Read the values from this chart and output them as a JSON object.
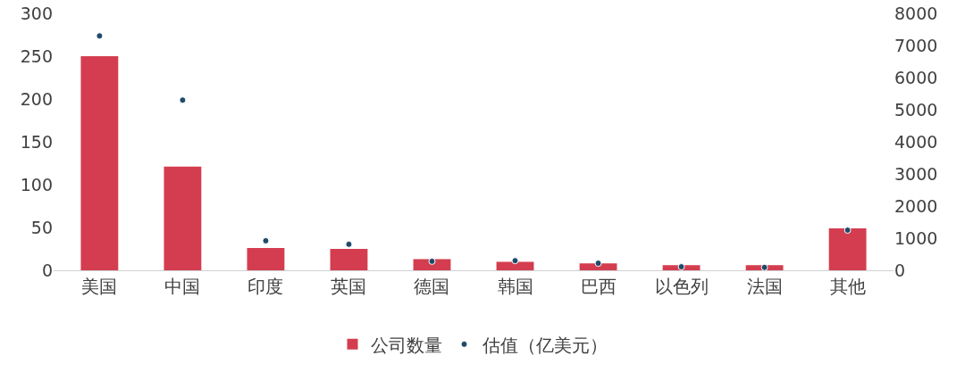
{
  "chart_data": {
    "type": "bar",
    "categories": [
      "美国",
      "中国",
      "印度",
      "英国",
      "德国",
      "韩国",
      "巴西",
      "以色列",
      "法国",
      "其他"
    ],
    "series": [
      {
        "name": "公司数量",
        "type": "bar",
        "color": "#d43d4f",
        "values": [
          250,
          121,
          26,
          25,
          13,
          10,
          8,
          6,
          6,
          49
        ]
      },
      {
        "name": "估值（亿美元）",
        "type": "scatter",
        "axis": "y2",
        "color": "#1f4a6b",
        "marker": "circle",
        "values": [
          7300,
          5300,
          920,
          810,
          280,
          300,
          220,
          110,
          90,
          1250
        ]
      }
    ],
    "ylim": [
      0,
      300
    ],
    "yticks": [
      0,
      50,
      100,
      150,
      200,
      250,
      300
    ],
    "y2lim": [
      0,
      8000
    ],
    "y2ticks": [
      0,
      1000,
      2000,
      3000,
      4000,
      5000,
      6000,
      7000,
      8000
    ],
    "grid": false,
    "legend": "bottom"
  }
}
